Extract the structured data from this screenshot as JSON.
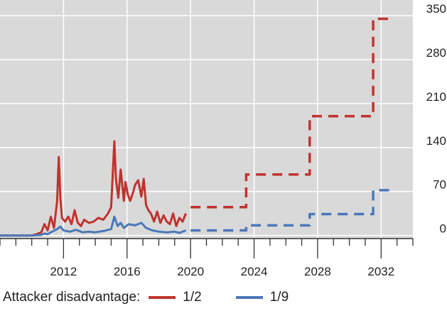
{
  "chart_data": {
    "type": "line",
    "x_ticks": [
      "2012",
      "2016",
      "2020",
      "2024",
      "2028",
      "2032"
    ],
    "y_ticks": [
      "0",
      "70",
      "140",
      "210",
      "280",
      "350"
    ],
    "xlim": [
      2008.0,
      2034.0
    ],
    "ylim": [
      -5,
      375
    ],
    "grid": true,
    "legend_position": "bottom",
    "legend_title": "Attacker disadvantage:",
    "colors": {
      "red": "#c0332f",
      "blue": "#4a78b8",
      "background": "#d9d9d9",
      "grid": "#ffffff"
    },
    "series": [
      {
        "name": "1/2",
        "style": "solid",
        "x": [
          2008.0,
          2010.0,
          2010.3,
          2010.6,
          2010.8,
          2011.0,
          2011.2,
          2011.4,
          2011.6,
          2011.7,
          2011.8,
          2011.9,
          2012.1,
          2012.3,
          2012.5,
          2012.7,
          2012.9,
          2013.1,
          2013.3,
          2013.6,
          2013.9,
          2014.2,
          2014.5,
          2014.8,
          2015.0,
          2015.2,
          2015.3,
          2015.45,
          2015.6,
          2015.8,
          2015.9,
          2016.05,
          2016.2,
          2016.4,
          2016.5,
          2016.7,
          2016.9,
          2017.05,
          2017.2,
          2017.35,
          2017.5,
          2017.7,
          2017.9,
          2018.1,
          2018.3,
          2018.5,
          2018.7,
          2018.9,
          2019.1,
          2019.3,
          2019.5,
          2019.7
        ],
        "values": [
          0,
          0,
          2,
          5,
          18,
          8,
          30,
          12,
          55,
          125,
          60,
          28,
          22,
          30,
          18,
          40,
          20,
          15,
          25,
          20,
          22,
          28,
          25,
          35,
          45,
          150,
          90,
          60,
          105,
          55,
          85,
          65,
          55,
          70,
          80,
          88,
          62,
          90,
          48,
          40,
          35,
          22,
          38,
          20,
          32,
          22,
          18,
          35,
          15,
          28,
          22,
          35
        ]
      },
      {
        "name": "1/9",
        "style": "solid",
        "x": [
          2008.0,
          2010.0,
          2010.6,
          2010.8,
          2011.0,
          2011.2,
          2011.6,
          2011.8,
          2012.0,
          2012.4,
          2012.8,
          2013.2,
          2013.6,
          2014.0,
          2014.5,
          2015.0,
          2015.2,
          2015.4,
          2015.6,
          2015.8,
          2016.1,
          2016.5,
          2016.9,
          2017.2,
          2017.6,
          2018.0,
          2018.5,
          2019.0,
          2019.3,
          2019.7
        ],
        "values": [
          0,
          0,
          1,
          3,
          2,
          5,
          10,
          14,
          8,
          6,
          9,
          5,
          6,
          5,
          7,
          10,
          30,
          15,
          20,
          12,
          18,
          16,
          20,
          12,
          8,
          6,
          5,
          6,
          4,
          8
        ]
      },
      {
        "name": "1/2",
        "style": "dashed",
        "x": [
          2020.0,
          2023.5,
          2023.5,
          2027.5,
          2027.5,
          2031.5,
          2031.5,
          2032.5
        ],
        "values": [
          45,
          45,
          97,
          97,
          190,
          190,
          345,
          345
        ]
      },
      {
        "name": "1/9",
        "style": "dashed",
        "x": [
          2020.0,
          2023.5,
          2023.5,
          2027.5,
          2027.5,
          2031.5,
          2031.5,
          2032.5
        ],
        "values": [
          8,
          8,
          16,
          16,
          34,
          34,
          72,
          72
        ]
      }
    ]
  },
  "legend": {
    "title": "Attacker disadvantage:",
    "items": [
      {
        "label": "1/2",
        "color": "#c0332f"
      },
      {
        "label": "1/9",
        "color": "#4a78b8"
      }
    ]
  }
}
